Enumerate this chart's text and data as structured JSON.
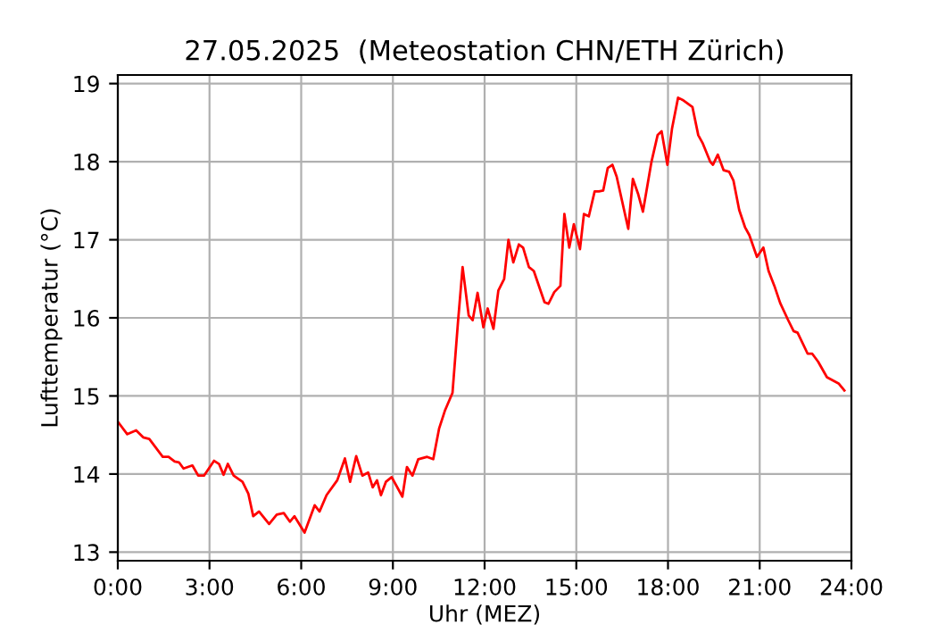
{
  "chart_data": {
    "type": "line",
    "title": "27.05.2025  (Meteostation CHN/ETH Zürich)",
    "xlabel": "Uhr (MEZ)",
    "ylabel": "Lufttemperatur (°C)",
    "xlim": [
      0,
      24
    ],
    "xticks": [
      {
        "value": 0,
        "label": "0:00"
      },
      {
        "value": 3,
        "label": "3:00"
      },
      {
        "value": 6,
        "label": "6:00"
      },
      {
        "value": 9,
        "label": "9:00"
      },
      {
        "value": 12,
        "label": "12:00"
      },
      {
        "value": 15,
        "label": "15:00"
      },
      {
        "value": 18,
        "label": "18:00"
      },
      {
        "value": 21,
        "label": "21:00"
      },
      {
        "value": 24,
        "label": "24:00"
      }
    ],
    "ylim": [
      12.89,
      19.11
    ],
    "yticks": [
      13,
      14,
      15,
      16,
      17,
      18,
      19
    ],
    "grid": true,
    "marker": "none",
    "line_style": "solid",
    "series": [
      {
        "color": "#ff0000",
        "x": [
          0,
          0.31,
          0.6,
          0.83,
          1.03,
          1.47,
          1.66,
          1.86,
          2.0,
          2.15,
          2.44,
          2.63,
          2.82,
          3.15,
          3.31,
          3.46,
          3.6,
          3.79,
          4.08,
          4.27,
          4.43,
          4.62,
          4.95,
          5.2,
          5.43,
          5.63,
          5.78,
          6.11,
          6.44,
          6.6,
          6.83,
          7.18,
          7.43,
          7.6,
          7.8,
          8.0,
          8.19,
          8.34,
          8.48,
          8.61,
          8.77,
          8.96,
          9.31,
          9.46,
          9.64,
          9.83,
          10.12,
          10.32,
          10.51,
          10.7,
          10.95,
          11.13,
          11.28,
          11.48,
          11.61,
          11.77,
          11.96,
          12.1,
          12.29,
          12.45,
          12.64,
          12.78,
          12.94,
          13.12,
          13.26,
          13.45,
          13.61,
          13.96,
          14.09,
          14.28,
          14.48,
          14.61,
          14.77,
          14.92,
          15.12,
          15.25,
          15.41,
          15.6,
          15.74,
          15.88,
          16.03,
          16.18,
          16.32,
          16.7,
          16.85,
          17.02,
          17.18,
          17.46,
          17.66,
          17.79,
          17.98,
          18.13,
          18.33,
          18.48,
          18.8,
          18.99,
          19.13,
          19.38,
          19.47,
          19.63,
          19.82,
          20.0,
          20.14,
          20.33,
          20.52,
          20.66,
          20.91,
          21.12,
          21.29,
          21.48,
          21.67,
          21.92,
          22.11,
          22.24,
          22.57,
          22.72,
          22.91,
          23.2,
          23.39,
          23.58,
          23.77
        ],
        "values": [
          14.67,
          14.51,
          14.56,
          14.47,
          14.45,
          14.22,
          14.22,
          14.16,
          14.15,
          14.07,
          14.11,
          13.98,
          13.98,
          14.17,
          14.13,
          13.99,
          14.13,
          13.98,
          13.9,
          13.75,
          13.46,
          13.52,
          13.36,
          13.48,
          13.5,
          13.39,
          13.46,
          13.25,
          13.6,
          13.52,
          13.73,
          13.92,
          14.2,
          13.9,
          14.23,
          13.98,
          14.02,
          13.83,
          13.92,
          13.73,
          13.9,
          13.96,
          13.71,
          14.09,
          13.98,
          14.19,
          14.22,
          14.19,
          14.58,
          14.81,
          15.04,
          15.95,
          16.65,
          16.03,
          15.97,
          16.32,
          15.88,
          16.12,
          15.86,
          16.35,
          16.5,
          17.0,
          16.71,
          16.94,
          16.9,
          16.65,
          16.6,
          16.2,
          16.18,
          16.33,
          16.41,
          17.33,
          16.9,
          17.2,
          16.88,
          17.33,
          17.3,
          17.62,
          17.62,
          17.63,
          17.92,
          17.96,
          17.81,
          17.14,
          17.78,
          17.59,
          17.36,
          18.0,
          18.34,
          18.39,
          17.96,
          18.42,
          18.82,
          18.79,
          18.7,
          18.34,
          18.24,
          18.0,
          17.96,
          18.09,
          17.89,
          17.87,
          17.76,
          17.38,
          17.16,
          17.06,
          16.78,
          16.9,
          16.6,
          16.41,
          16.19,
          15.98,
          15.83,
          15.81,
          15.54,
          15.54,
          15.44,
          15.24,
          15.2,
          15.16,
          15.07
        ]
      }
    ]
  }
}
